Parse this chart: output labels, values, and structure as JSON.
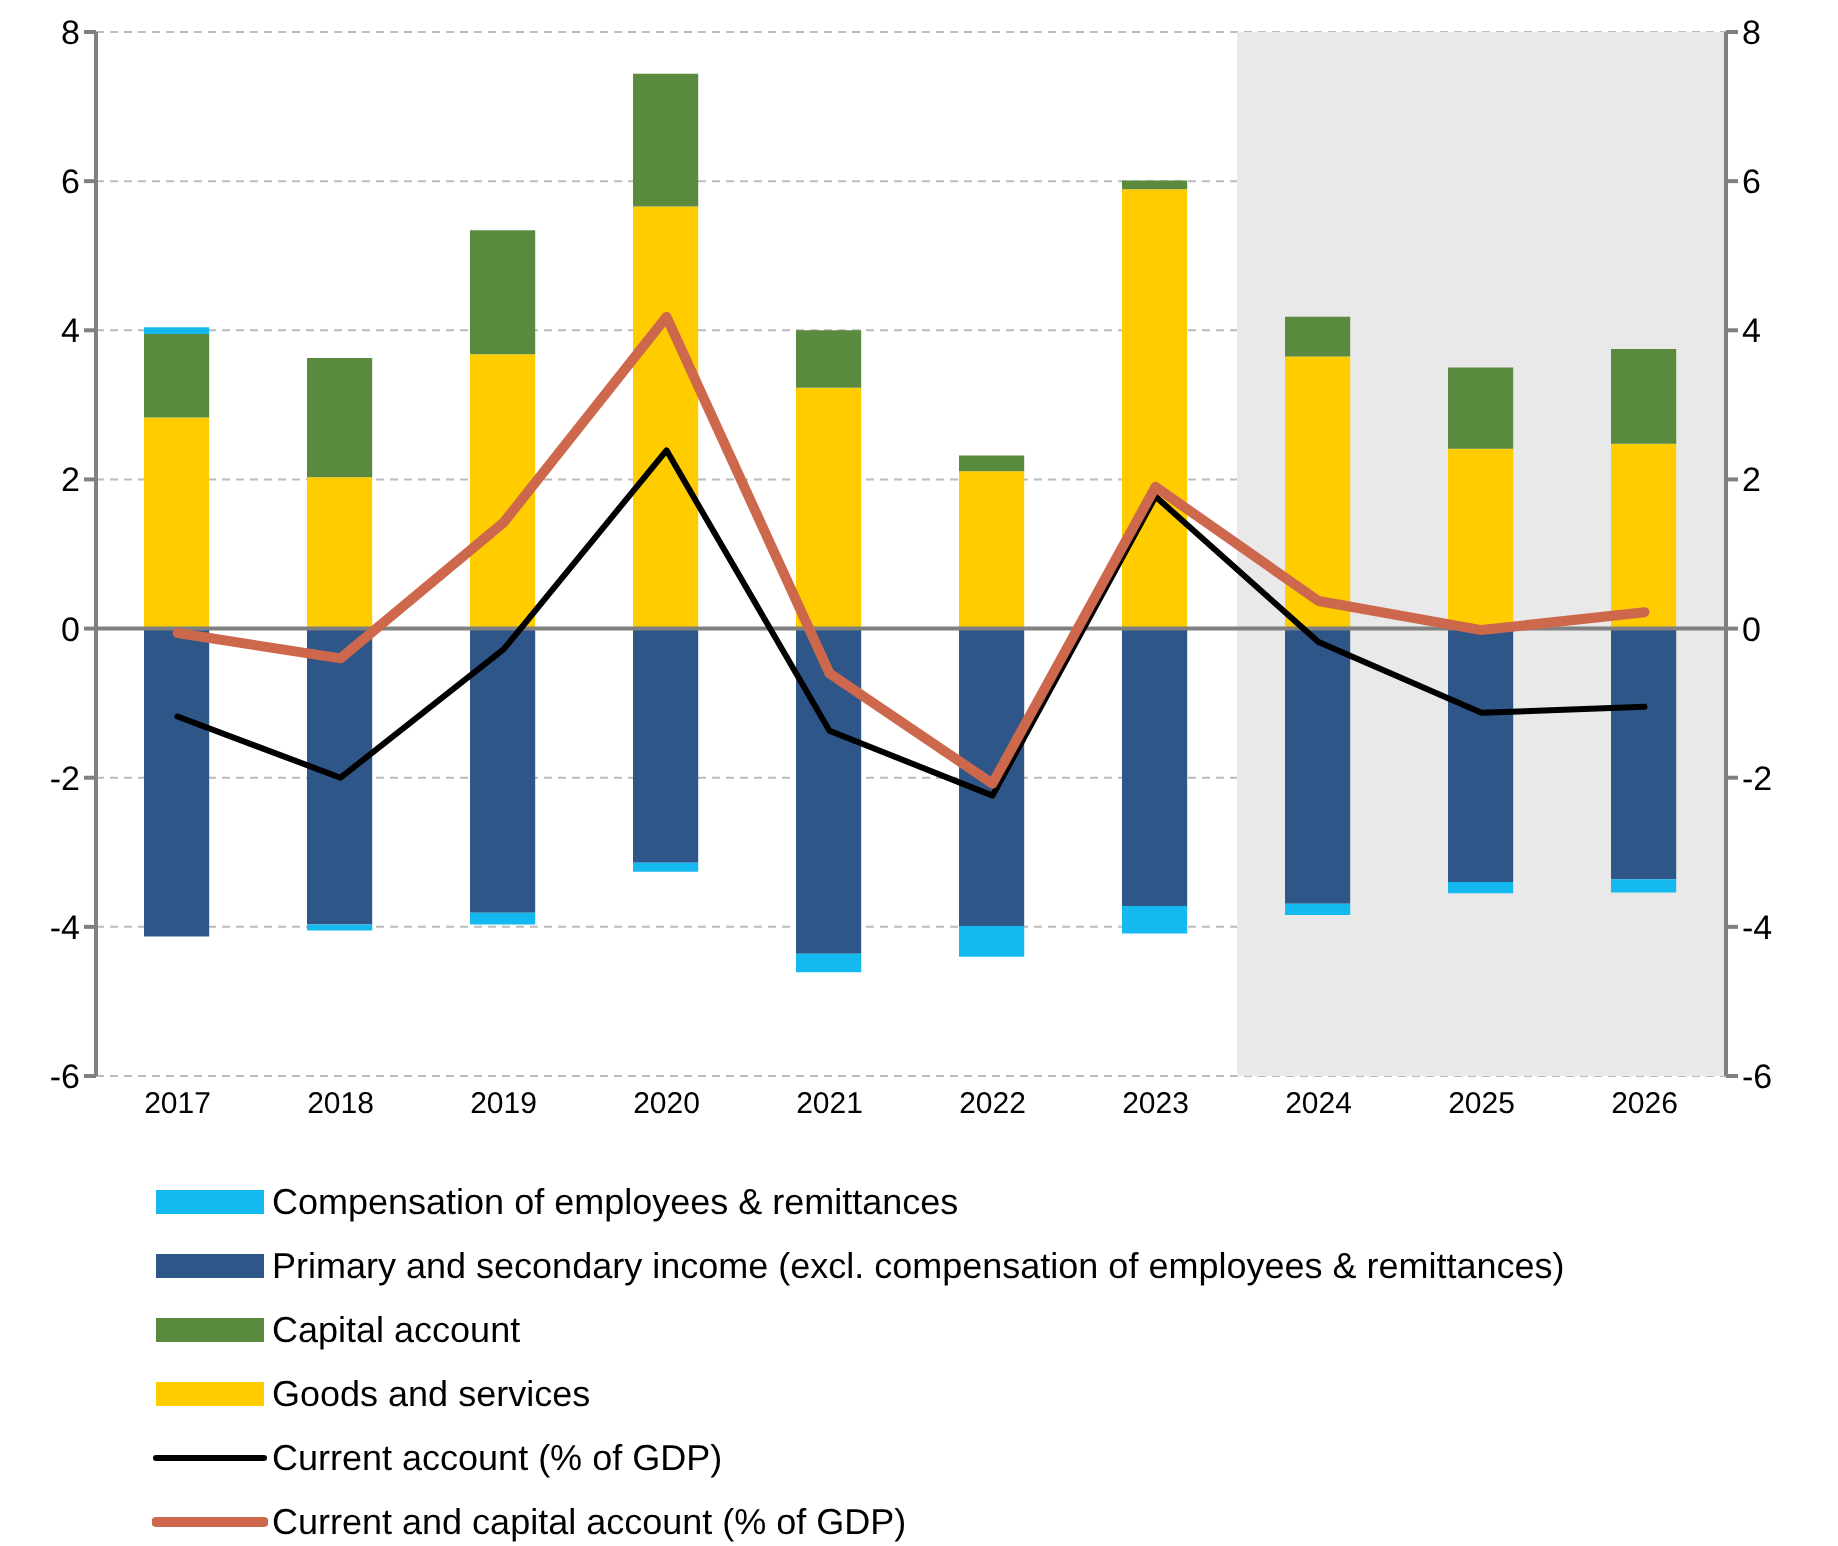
{
  "chart_data": {
    "type": "bar",
    "stacked": true,
    "categories": [
      "2017",
      "2018",
      "2019",
      "2020",
      "2021",
      "2022",
      "2023",
      "2024",
      "2025",
      "2026"
    ],
    "series": [
      {
        "name": "Goods and services",
        "color": "#ffcc00",
        "values": [
          2.83,
          2.03,
          3.68,
          5.66,
          3.23,
          2.11,
          5.89,
          3.65,
          2.41,
          2.48
        ]
      },
      {
        "name": "Capital account",
        "color": "#5a8a3e",
        "values": [
          1.12,
          1.6,
          1.66,
          1.78,
          0.77,
          0.21,
          0.12,
          0.53,
          1.09,
          1.27
        ]
      },
      {
        "name": "Primary and secondary income (excl. compensation of employees & remittances)",
        "color": "#2e5689",
        "values": [
          -4.13,
          -3.97,
          -3.81,
          -3.14,
          -4.36,
          -3.99,
          -3.72,
          -3.69,
          -3.4,
          -3.36
        ]
      },
      {
        "name": "Compensation of employees & remittances",
        "color": "#13b9ef",
        "values": [
          0.09,
          -0.08,
          -0.16,
          -0.12,
          -0.25,
          -0.41,
          -0.37,
          -0.15,
          -0.15,
          -0.18
        ]
      },
      {
        "name": "Current account (% of GDP)",
        "type": "line",
        "color": "#000000",
        "values": [
          -1.18,
          -2.0,
          -0.28,
          2.39,
          -1.37,
          -2.24,
          1.77,
          -0.18,
          -1.13,
          -1.05
        ]
      },
      {
        "name": "Current and capital account (% of GDP)",
        "type": "line",
        "color": "#cd684d",
        "values": [
          -0.06,
          -0.4,
          1.42,
          4.18,
          -0.6,
          -2.08,
          1.9,
          0.37,
          -0.02,
          0.22
        ]
      }
    ],
    "ylim": [
      -6,
      8
    ],
    "yticks": [
      -6,
      -4,
      -2,
      0,
      2,
      4,
      6,
      8
    ],
    "y2lim": [
      -6,
      8
    ],
    "y2ticks": [
      -6,
      -4,
      -2,
      0,
      2,
      4,
      6,
      8
    ],
    "bands": [
      {
        "axis": "x",
        "from": "2024",
        "to": "2026",
        "color": "#e9e9e9"
      }
    ],
    "grid": "y",
    "legend": "bottom",
    "marker": "none",
    "line_style": "solid"
  }
}
